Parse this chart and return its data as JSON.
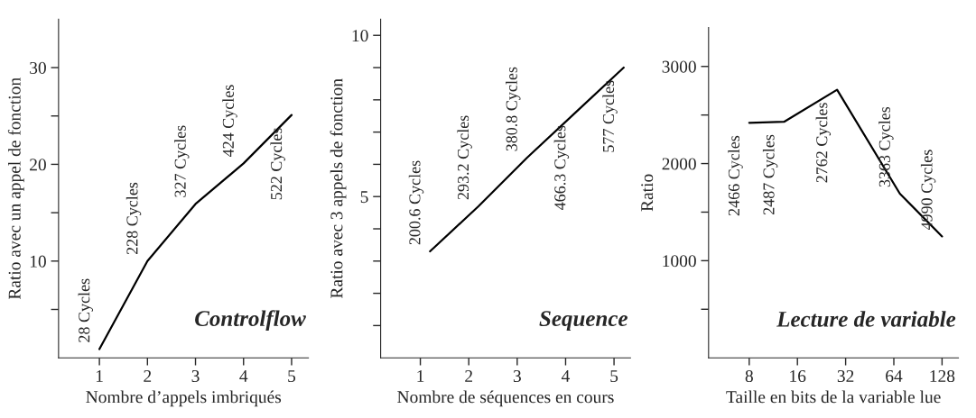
{
  "chart_data": [
    {
      "type": "line",
      "title": "Controlflow",
      "xlabel": "Nombre d’appels imbriqués",
      "ylabel": "Ratio avec un appel de fonction",
      "x": [
        1,
        2,
        3,
        4,
        5
      ],
      "series": [
        {
          "color": "#000000",
          "values": [
            0.9,
            10.0,
            15.9,
            20.1,
            25.1
          ]
        }
      ],
      "xlim": [
        0.15,
        5.35
      ],
      "xticks": [
        1,
        2,
        3,
        4,
        5
      ],
      "ylim": [
        0,
        35
      ],
      "yticks": [
        {
          "value": 5,
          "label": null
        },
        10,
        {
          "value": 15,
          "label": null
        },
        20,
        {
          "value": 25,
          "label": null
        },
        30
      ],
      "annotations": [
        {
          "text": "28 Cycles",
          "x": 1,
          "y": 0.9
        },
        {
          "text": "228 Cycles",
          "x": 2,
          "y": 10.0
        },
        {
          "text": "327 Cycles",
          "x": 3,
          "y": 15.9
        },
        {
          "text": "424 Cycles",
          "x": 4,
          "y": 20.1
        },
        {
          "text": "522 Cycles",
          "x": 5,
          "y": 25.1
        }
      ]
    },
    {
      "type": "line",
      "title": "Sequence",
      "xlabel": "Nombre de séquences en cours",
      "ylabel": "Ratio avec 3 appels de fonction",
      "x": [
        1.2,
        2.2,
        3.2,
        4.2,
        5.2
      ],
      "series": [
        {
          "color": "#000000",
          "values": [
            3.3,
            4.7,
            6.2,
            7.6,
            9.0
          ]
        }
      ],
      "xlim": [
        0.18,
        5.34
      ],
      "xticks": [
        1,
        2,
        3,
        4,
        5
      ],
      "ylim": [
        0,
        10.5
      ],
      "yticks": [
        {
          "value": 1,
          "label": null
        },
        {
          "value": 2,
          "label": null
        },
        {
          "value": 3,
          "label": null
        },
        {
          "value": 4,
          "label": null
        },
        5,
        {
          "value": 6,
          "label": null
        },
        {
          "value": 7,
          "label": null
        },
        {
          "value": 8,
          "label": null
        },
        {
          "value": 9,
          "label": null
        },
        10
      ],
      "annotations": [
        {
          "text": "200.6 Cycles",
          "x": 1.2,
          "y": 3.3
        },
        {
          "text": "293.2 Cycles",
          "x": 2.2,
          "y": 4.7
        },
        {
          "text": "380.8 Cycles",
          "x": 3.2,
          "y": 6.2
        },
        {
          "text": "466.3 Cycles",
          "x": 4.2,
          "y": 7.6
        },
        {
          "text": "577 Cycles",
          "x": 5.2,
          "y": 9.0
        }
      ]
    },
    {
      "type": "line",
      "title": "Lecture de variable",
      "xlabel": "Taille en bits de la variable lue",
      "ylabel": "Ratio",
      "log": "x",
      "x": [
        8,
        13.2,
        28.3,
        69.8,
        128
      ],
      "series": [
        {
          "color": "#000000",
          "values": [
            2420,
            2430,
            2760,
            1690,
            1250
          ]
        }
      ],
      "xlim": [
        4.46,
        162
      ],
      "xticks": [
        8,
        16,
        32,
        64,
        128
      ],
      "ylim": [
        0,
        3400
      ],
      "yticks": [
        {
          "value": 500,
          "label": null
        },
        1000,
        {
          "value": 1500,
          "label": null
        },
        2000,
        {
          "value": 2500,
          "label": null
        },
        3000
      ],
      "annotations": [
        {
          "text": "2466 Cycles",
          "x": 8,
          "y": 2420
        },
        {
          "text": "2487 Cycles",
          "x": 13.2,
          "y": 2430
        },
        {
          "text": "2762 Cycles",
          "x": 28.3,
          "y": 2760
        },
        {
          "text": "3363 Cycles",
          "x": 69.8,
          "y": 1690
        },
        {
          "text": "4990 Cycles",
          "x": 128,
          "y": 1250
        }
      ]
    }
  ]
}
